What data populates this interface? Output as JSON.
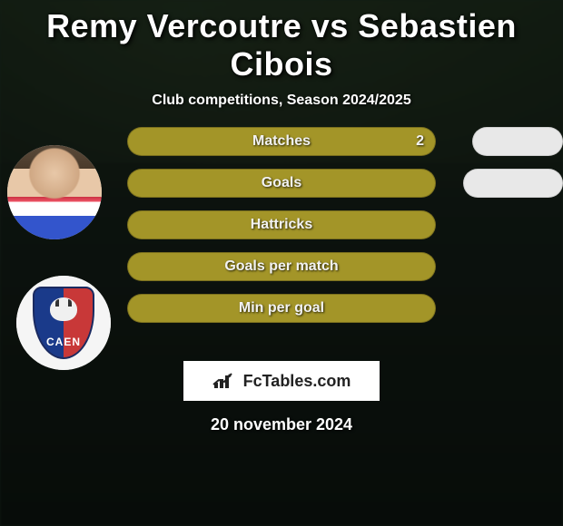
{
  "title": "Remy Vercoutre vs Sebastien Cibois",
  "subtitle": "Club competitions, Season 2024/2025",
  "date": "20 november 2024",
  "logo": {
    "text": "FcTables.com"
  },
  "colors": {
    "bar_primary": "#a39528",
    "bar_secondary": "#e8e8e8",
    "text": "#ffffff",
    "logo_bg": "#ffffff",
    "logo_text": "#222222"
  },
  "player1": {
    "avatar_type": "photo"
  },
  "player2": {
    "avatar_type": "crest",
    "crest_label": "CAEN"
  },
  "stats": [
    {
      "label": "Matches",
      "left_value": "2",
      "left_width": 340,
      "right_width": 100,
      "show_right": true,
      "show_value": true
    },
    {
      "label": "Goals",
      "left_value": "",
      "left_width": 340,
      "right_width": 110,
      "show_right": true,
      "show_value": false
    },
    {
      "label": "Hattricks",
      "left_value": "",
      "left_width": 340,
      "right_width": 0,
      "show_right": false,
      "show_value": false
    },
    {
      "label": "Goals per match",
      "left_value": "",
      "left_width": 340,
      "right_width": 0,
      "show_right": false,
      "show_value": false
    },
    {
      "label": "Min per goal",
      "left_value": "",
      "left_width": 340,
      "right_width": 0,
      "show_right": false,
      "show_value": false
    }
  ]
}
